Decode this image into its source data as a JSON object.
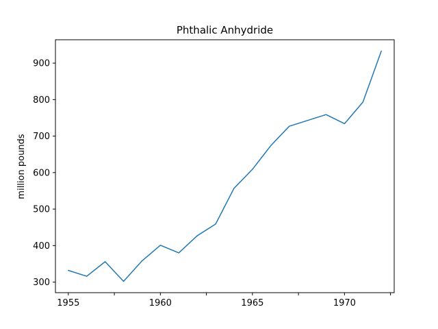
{
  "chart_data": {
    "type": "line",
    "title": "Phthalic Anhydride",
    "xlabel": "",
    "ylabel": "million pounds",
    "xlim": [
      1954.3,
      1972.7
    ],
    "ylim": [
      271,
      964
    ],
    "x_ticks": [
      1955,
      1960,
      1965,
      1970
    ],
    "x_minor_ticks": [
      1957.5,
      1962.5,
      1967.5,
      1972.5
    ],
    "y_ticks": [
      300,
      400,
      500,
      600,
      700,
      800,
      900
    ],
    "grid": false,
    "series": [
      {
        "name": "Phthalic Anhydride",
        "color": "#1f77b4",
        "x": [
          1955,
          1956,
          1957,
          1958,
          1959,
          1960,
          1961,
          1962,
          1963,
          1964,
          1965,
          1966,
          1967,
          1968,
          1969,
          1970,
          1971,
          1972
        ],
        "y": [
          332,
          316,
          356,
          302,
          358,
          401,
          380,
          427,
          459,
          557,
          609,
          674,
          727,
          743,
          759,
          734,
          793,
          933
        ]
      }
    ]
  }
}
